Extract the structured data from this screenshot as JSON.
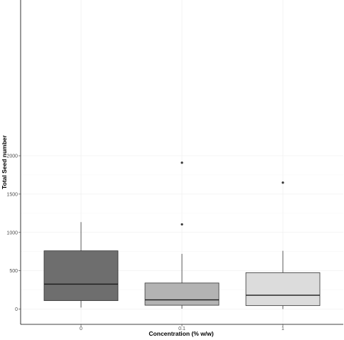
{
  "chart_data": {
    "type": "boxplot",
    "xlabel": "Concentration (% w/w)",
    "ylabel": "Total Seed number",
    "ylim": [
      -95,
      2010
    ],
    "yticks": [
      0,
      500,
      1000,
      1500,
      2000
    ],
    "grid": true,
    "legend": "none",
    "categories": [
      "0",
      "0.1",
      "1"
    ],
    "boxes": [
      {
        "category": "0",
        "whisker_low": 20,
        "q1": 110,
        "median": 325,
        "q3": 760,
        "whisker_high": 1135,
        "outliers": [],
        "fill": "#6e6e6e"
      },
      {
        "category": "0.1",
        "whisker_low": 5,
        "q1": 50,
        "median": 120,
        "q3": 340,
        "whisker_high": 720,
        "outliers": [
          1105,
          1910
        ],
        "fill": "#b3b3b3"
      },
      {
        "category": "1",
        "whisker_low": 0,
        "q1": 45,
        "median": 180,
        "q3": 475,
        "whisker_high": 760,
        "outliers": [
          1650
        ],
        "fill": "#dcdcdc"
      }
    ]
  }
}
